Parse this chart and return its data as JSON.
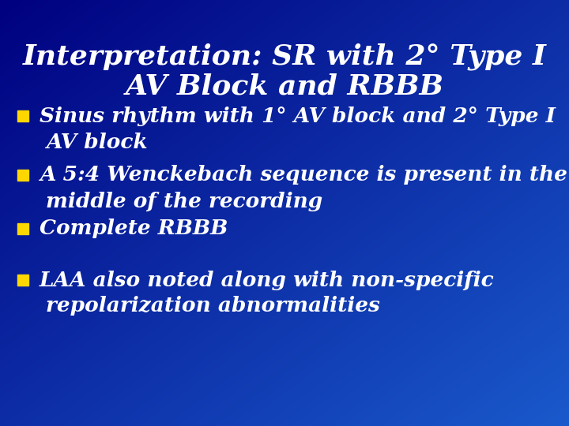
{
  "title_line1": "Interpretation: SR with 2° Type I",
  "title_line2": "AV Block and RBBB",
  "bullet_color": "#FFD700",
  "text_color": "#FFFFFF",
  "title_color": "#FFFFFF",
  "bg_color_topleft": "#000080",
  "bg_color_bottomright": "#1a3faa",
  "bullet_points": [
    [
      "Sinus rhythm with 1° AV block and 2° Type I",
      "AV block"
    ],
    [
      "A 5:4 Wenckebach sequence is present in the",
      "middle of the recording"
    ],
    [
      "Complete RBBB"
    ],
    [
      "LAA also noted along with non-specific",
      "repolarization abnormalities"
    ]
  ],
  "title_fontsize": 26,
  "bullet_fontsize": 19,
  "fig_width": 7.2,
  "fig_height": 5.4,
  "dpi": 100
}
